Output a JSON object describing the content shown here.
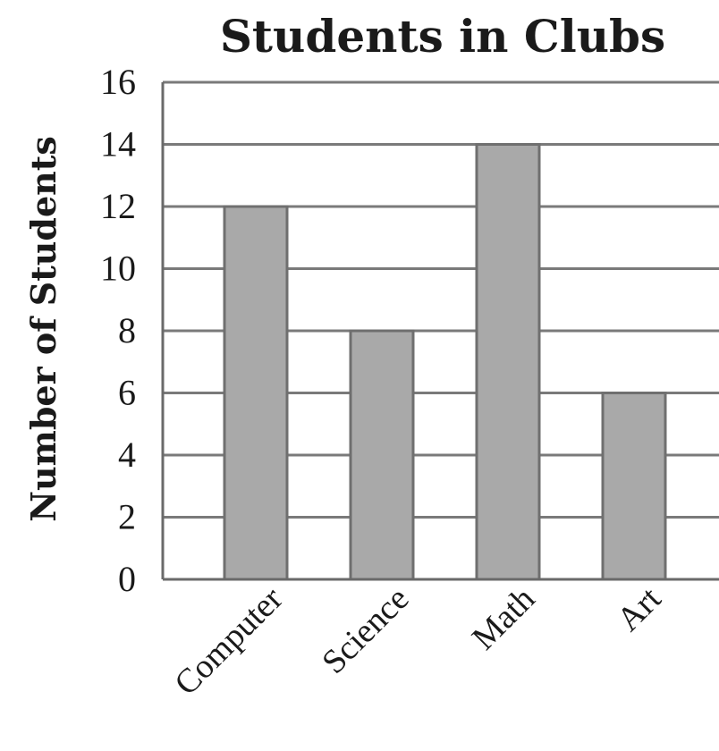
{
  "chart_data": {
    "type": "bar",
    "title": "Students in Clubs",
    "xlabel": "",
    "ylabel": "Number of Students",
    "categories": [
      "Computer",
      "Science",
      "Math",
      "Art"
    ],
    "values": [
      12,
      8,
      14,
      6
    ],
    "ylim": [
      0,
      16
    ],
    "yticks": [
      "0",
      "2",
      "4",
      "6",
      "8",
      "10",
      "12",
      "14",
      "16"
    ],
    "grid": true,
    "legend": "none",
    "colors": {
      "bar_fill": "#a9a9a9",
      "bar_stroke": "#6f6f6f",
      "grid": "#7a7a7a",
      "axis": "#6a6a6a",
      "text": "#1a1a1a"
    }
  }
}
